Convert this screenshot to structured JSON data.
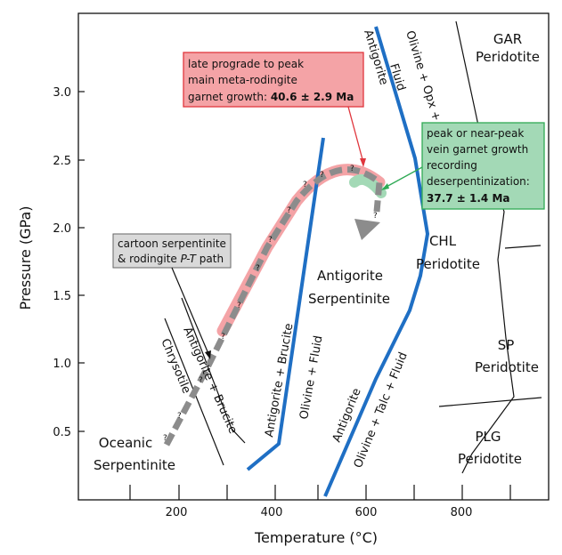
{
  "chart_data": {
    "type": "diagram",
    "xlabel": "Temperature (°C)",
    "ylabel": "Pressure (GPa)",
    "xticks": [
      "200",
      "400",
      "600",
      "800"
    ],
    "yticks": [
      "0.5",
      "1.0",
      "1.5",
      "2.0",
      "2.5",
      "3.0"
    ],
    "fields": {
      "gar": [
        "GAR",
        "Peridotite"
      ],
      "chl": [
        "CHL",
        "Peridotite"
      ],
      "sp": [
        "SP",
        "Peridotite"
      ],
      "plg": [
        "PLG",
        "Peridotite"
      ],
      "antigorite": [
        "Antigorite",
        "Serpentinite"
      ],
      "oceanic": [
        "Oceanic",
        "Serpentinite"
      ]
    },
    "reaction_labels": {
      "chrysotile": "Chrysotile",
      "antigorite_brucite_left": "Antigorite + Brucite",
      "antigorite_brucite": "Antigorite + Brucite",
      "olivine_fluid": "Olivine + Fluid",
      "antigorite_low": "Antigorite",
      "olivine_talc_fluid": "Olivine + Talc + Fluid",
      "antigorite_high": "Antigorite",
      "olivine_opx_fluid": "Olivine + Opx +",
      "fluid": "Fluid"
    },
    "annotations": {
      "red_box": [
        "late prograde to peak",
        "main meta-rodingite",
        "garnet growth: ",
        "40.6 ± 2.9 Ma"
      ],
      "green_box": [
        "peak or near-peak",
        "vein garnet growth",
        "recording",
        "deserpentinization:",
        "37.7 ± 1.4 Ma"
      ],
      "gray_box": [
        "cartoon serpentinite",
        "& rodingite ",
        "P-T",
        " path"
      ]
    },
    "path_marker": "?",
    "colors": {
      "reaction_line": "#1f6fc4",
      "red_box_fill": "#f4a3a6",
      "red_box_border": "#e0363d",
      "green_box_fill": "#a3d9b6",
      "green_box_border": "#2faa55",
      "path_dash": "#8c8c8c",
      "gray_box_fill": "#d9d9d9"
    }
  }
}
